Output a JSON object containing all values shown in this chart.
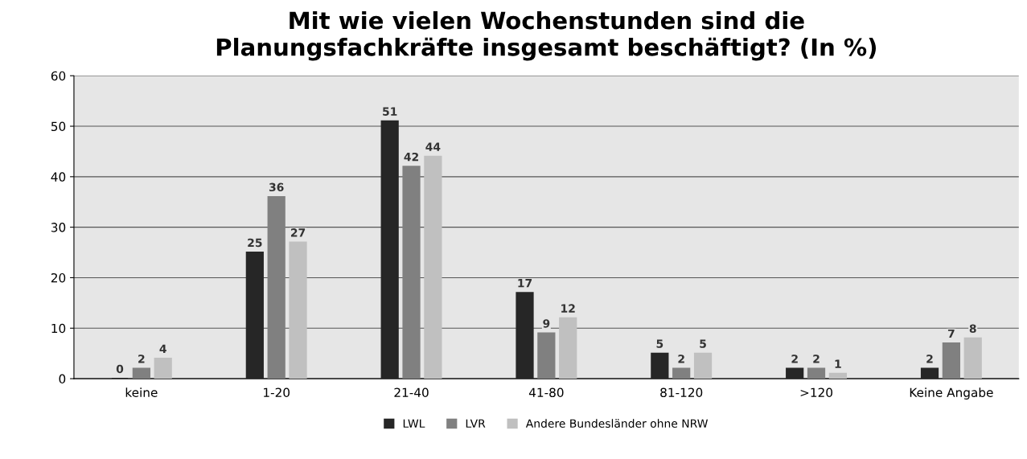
{
  "chart_data": {
    "type": "bar",
    "title": "Mit wie vielen Wochenstunden sind die\nPlanungsfachkräfte insgesamt beschäftigt? (In %)",
    "categories": [
      "keine",
      "1-20",
      "21-40",
      "41-80",
      "81-120",
      ">120",
      "Keine Angabe"
    ],
    "series": [
      {
        "name": "LWL",
        "color": "#262626",
        "values": [
          0,
          25,
          51,
          17,
          5,
          2,
          2
        ]
      },
      {
        "name": "LVR",
        "color": "#808080",
        "values": [
          2,
          36,
          42,
          9,
          2,
          2,
          7
        ]
      },
      {
        "name": "Andere Bundesländer ohne NRW",
        "color": "#c0c0c0",
        "values": [
          4,
          27,
          44,
          12,
          5,
          1,
          8
        ]
      }
    ],
    "ylim": [
      0,
      60
    ],
    "yticks": [
      0,
      10,
      20,
      30,
      40,
      50,
      60
    ],
    "grid": "y",
    "legend": "bottom",
    "data_labels": true
  }
}
